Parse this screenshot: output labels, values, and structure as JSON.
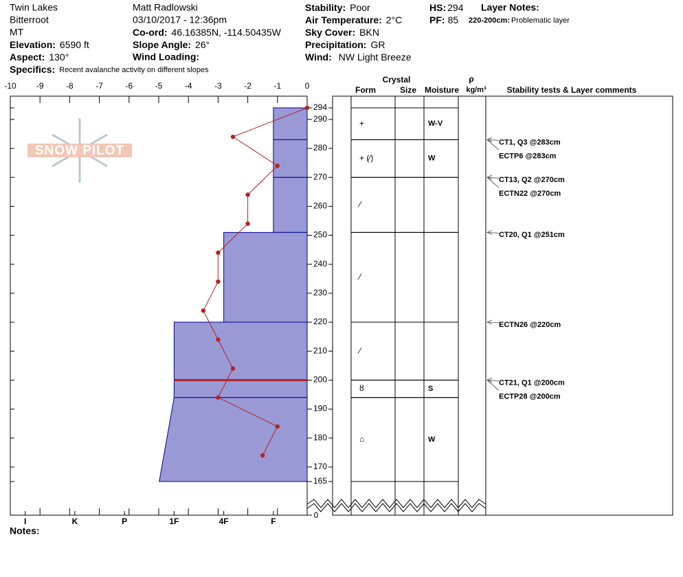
{
  "header": {
    "location": "Twin Lakes",
    "range": "Bitterroot",
    "state": "MT",
    "observer": "Matt Radlowski",
    "datetime": "03/10/2017 - 12:36pm",
    "elevation": {
      "label": "Elevation:",
      "value": "6590 ft"
    },
    "aspect": {
      "label": "Aspect:",
      "value": "130°"
    },
    "specifics": {
      "label": "Specifics:",
      "value": "Recent avalanche activity on different slopes"
    },
    "coord": {
      "label": "Co-ord:",
      "value": "46.16385N, -114.50435W"
    },
    "slope": {
      "label": "Slope Angle:",
      "value": "26°"
    },
    "wind_loading": {
      "label": "Wind Loading:"
    },
    "stability": {
      "label": "Stability:",
      "value": "Poor"
    },
    "air_temp": {
      "label": "Air Temperature:",
      "value": "2°C"
    },
    "sky": {
      "label": "Sky Cover:",
      "value": "BKN"
    },
    "precip": {
      "label": "Precipitation:",
      "value": "GR"
    },
    "wind": {
      "label": "Wind:",
      "value": "NW Light Breeze"
    },
    "hs": {
      "label": "HS:",
      "value": "294"
    },
    "pf": {
      "label": "PF:",
      "value": "85"
    },
    "layer_notes": "Layer Notes:",
    "layer_note": {
      "label": "220-200cm:",
      "value": "Problematic layer"
    }
  },
  "columns": {
    "crystal": "Crystal",
    "form": "Form",
    "size": "Size",
    "moisture": "Moisture",
    "rho": "ρ",
    "density": "kg/m³",
    "comments": "Stability tests & Layer comments"
  },
  "logo": "SNOW PILOT",
  "notes": "Notes:",
  "chart_data": {
    "type": "snow-profile",
    "xlim": [
      -10,
      0
    ],
    "xticks": [
      -10,
      -9,
      -8,
      -7,
      -6,
      -5,
      -4,
      -3,
      -2,
      -1,
      0
    ],
    "ylim": [
      165,
      294
    ],
    "yticks": [
      165,
      170,
      180,
      190,
      200,
      210,
      220,
      230,
      240,
      250,
      260,
      270,
      280,
      290,
      294
    ],
    "y_base_tick": 0,
    "hlim": [
      6.3,
      0.32
    ],
    "hardness_ticks": [
      {
        "value": 6,
        "label": "I"
      },
      {
        "value": 5,
        "label": "K"
      },
      {
        "value": 4,
        "label": "P"
      },
      {
        "value": 3,
        "label": "1F"
      },
      {
        "value": 2,
        "label": "4F"
      },
      {
        "value": 1,
        "label": "F"
      }
    ],
    "layer_color": "#9999d6",
    "temperature_color": "#b22222",
    "temperature": {
      "depth": [
        294,
        284,
        274,
        264,
        254,
        244,
        234,
        224,
        214,
        204,
        194,
        184,
        174
      ],
      "values": [
        0,
        -2.5,
        -1,
        -2,
        -2,
        -3,
        -3,
        -3.5,
        -3,
        -2.5,
        -3,
        -1,
        -1.5
      ]
    },
    "critical_layer": 200,
    "layers": [
      {
        "top": 294,
        "bottom": 283,
        "hardness_top": 1,
        "hardness_bottom": 1,
        "form": "+",
        "moisture": "W-V"
      },
      {
        "top": 283,
        "bottom": 270,
        "hardness_top": 1,
        "hardness_bottom": 1,
        "form": "+ (⁄)",
        "moisture": "W"
      },
      {
        "top": 270,
        "bottom": 251,
        "hardness_top": 1,
        "hardness_bottom": 1,
        "form": "⁄"
      },
      {
        "top": 251,
        "bottom": 220,
        "hardness_top": 2,
        "hardness_bottom": 2,
        "form": "⁄"
      },
      {
        "top": 220,
        "bottom": 200,
        "hardness_top": 3,
        "hardness_bottom": 3,
        "form": "⁄"
      },
      {
        "top": 200,
        "bottom": 194,
        "hardness_top": 3,
        "hardness_bottom": 3,
        "form": "ȣ",
        "moisture": "S"
      },
      {
        "top": 194,
        "bottom": 165,
        "hardness_top": 3,
        "hardness_bottom": 3.3,
        "form": "⌂",
        "moisture": "W"
      }
    ],
    "tests": [
      {
        "depth": 283,
        "label": "CT1, Q3 @283cm",
        "row": 0
      },
      {
        "depth": 283,
        "label": "ECTP6 @283cm",
        "row": 1
      },
      {
        "depth": 270,
        "label": "CT13, Q2 @270cm",
        "row": 0
      },
      {
        "depth": 270,
        "label": "ECTN22 @270cm",
        "row": 1
      },
      {
        "depth": 251,
        "label": "CT20, Q1 @251cm",
        "row": 0
      },
      {
        "depth": 220,
        "label": "ECTN26 @220cm",
        "row": 0
      },
      {
        "depth": 200,
        "label": "CT21, Q1 @200cm",
        "row": 0
      },
      {
        "depth": 200,
        "label": "ECTP28 @200cm",
        "row": 1
      }
    ]
  }
}
